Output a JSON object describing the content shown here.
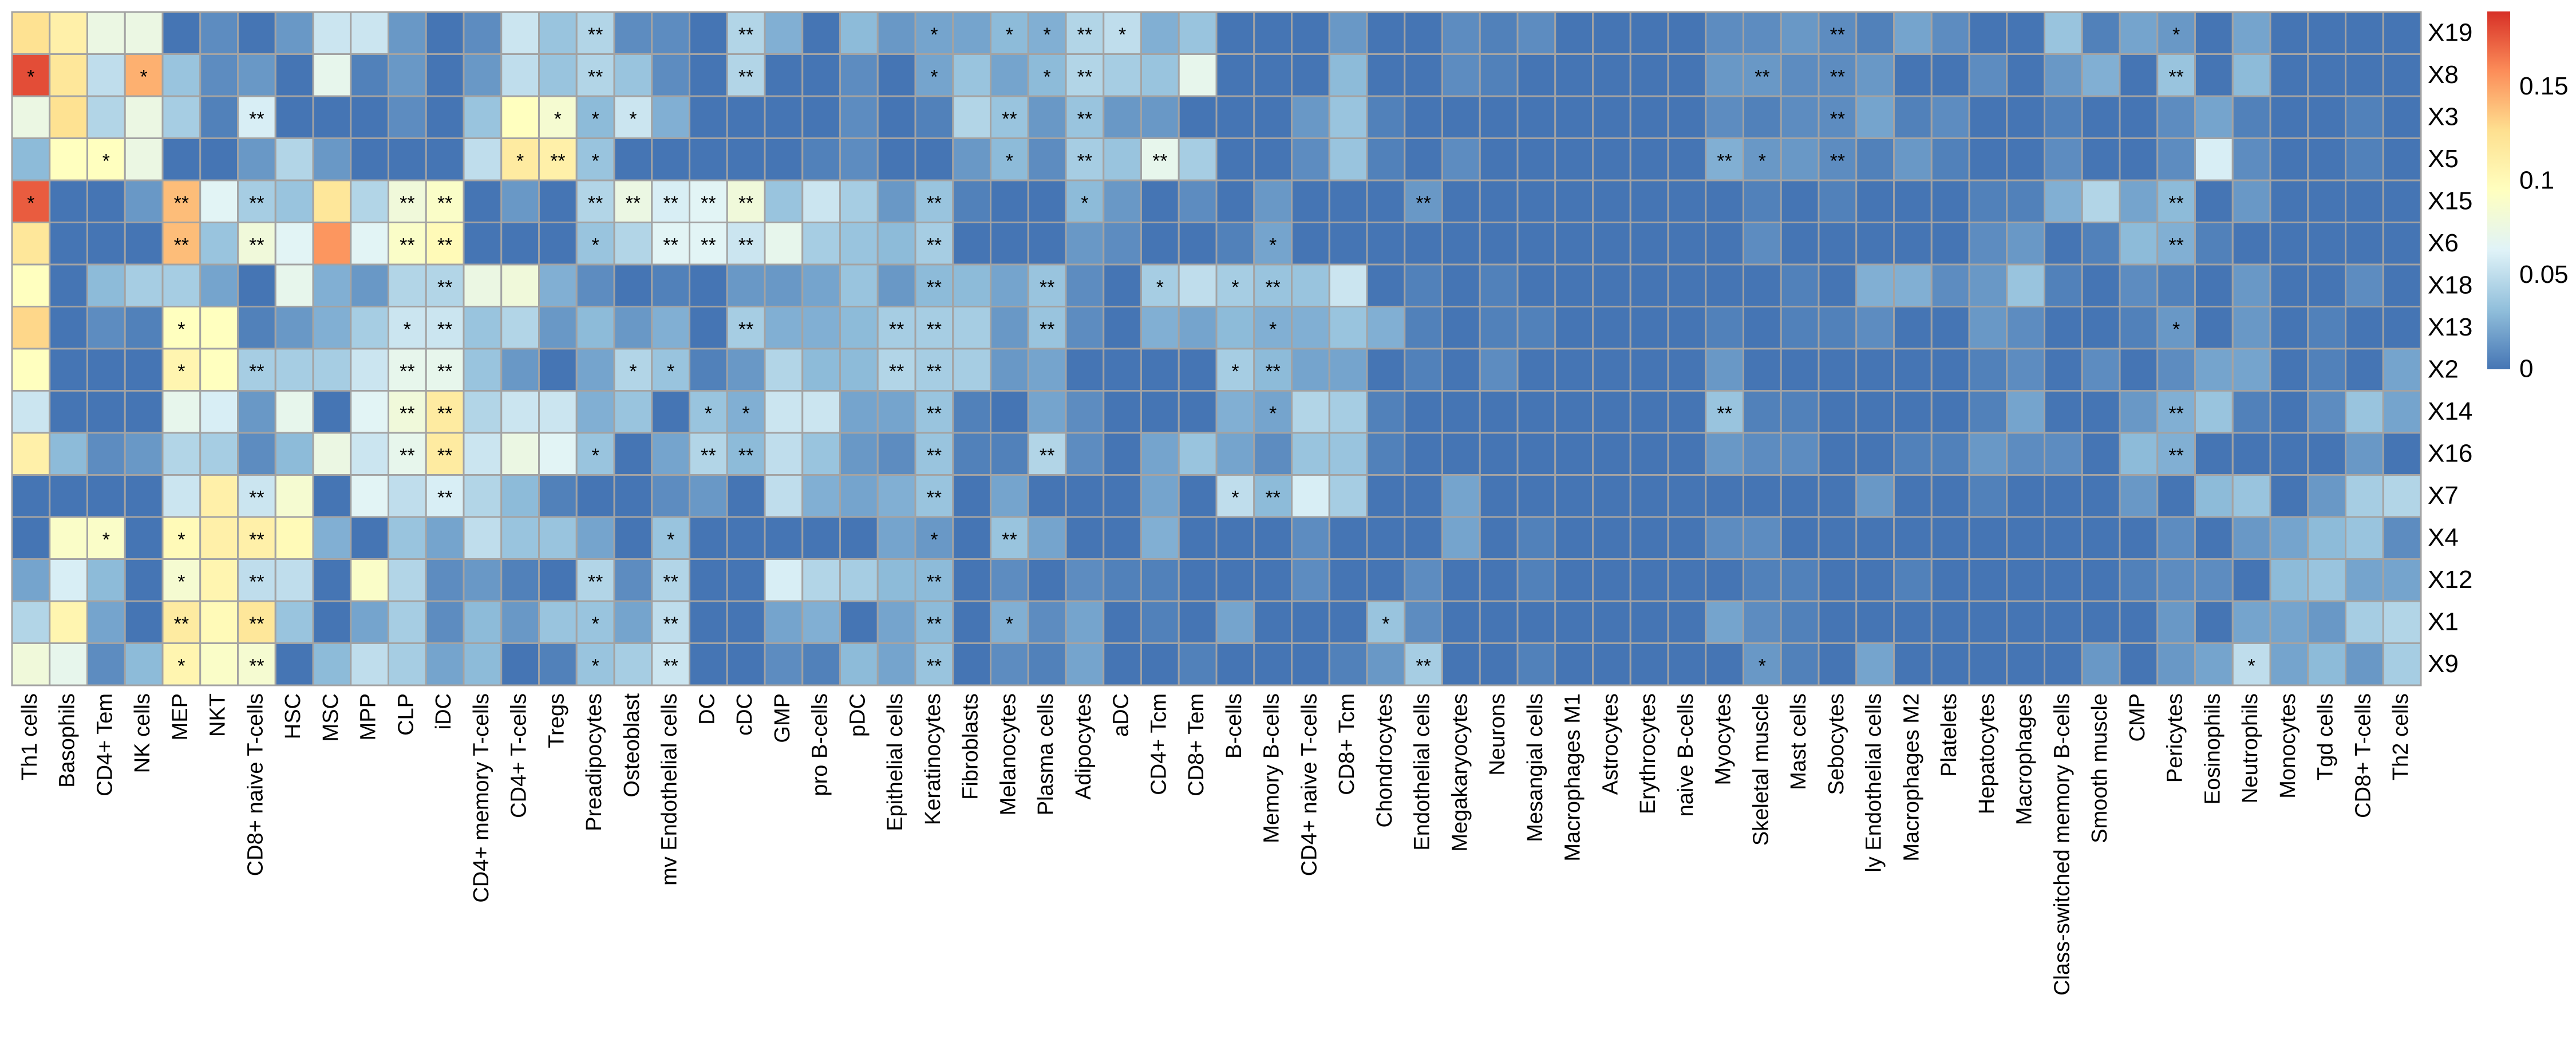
{
  "chart_data": {
    "type": "heatmap",
    "title": "",
    "rows": [
      "X19",
      "X8",
      "X3",
      "X5",
      "X15",
      "X6",
      "X18",
      "X13",
      "X2",
      "X14",
      "X16",
      "X7",
      "X4",
      "X12",
      "X1",
      "X9"
    ],
    "columns": [
      "Th1 cells",
      "Basophils",
      "CD4+ Tem",
      "NK cells",
      "MEP",
      "NKT",
      "CD8+ naive T-cells",
      "HSC",
      "MSC",
      "MPP",
      "CLP",
      "iDC",
      "CD4+ memory T-cells",
      "CD4+ T-cells",
      "Tregs",
      "Preadipocytes",
      "Osteoblast",
      "mv Endothelial cells",
      "DC",
      "cDC",
      "GMP",
      "pro B-cells",
      "pDC",
      "Epithelial cells",
      "Keratinocytes",
      "Fibroblasts",
      "Melanocytes",
      "Plasma cells",
      "Adipocytes",
      "aDC",
      "CD4+ Tcm",
      "CD8+ Tem",
      "B-cells",
      "Memory B-cells",
      "CD4+ naive T-cells",
      "CD8+ Tcm",
      "Chondrocytes",
      "Endothelial cells",
      "Megakaryocytes",
      "Neurons",
      "Mesangial cells",
      "Macrophages M1",
      "Astrocytes",
      "Erythrocytes",
      "naive B-cells",
      "Myocytes",
      "Skeletal muscle",
      "Mast cells",
      "Sebocytes",
      "ly Endothelial cells",
      "Macrophages M2",
      "Platelets",
      "Hepatocytes",
      "Macrophages",
      "Class-switched memory B-cells",
      "Smooth muscle",
      "CMP",
      "Pericytes",
      "Eosinophils",
      "Neutrophils",
      "Monocytes",
      "Tgd cells",
      "CD8+ T-cells",
      "Th2 cells"
    ],
    "values": [
      [
        0.125,
        0.11,
        0.075,
        0.075,
        0,
        0.01,
        0,
        0.015,
        0.055,
        0.055,
        0.015,
        0,
        0.01,
        0.055,
        0.035,
        0.045,
        0.01,
        0.01,
        0,
        0.045,
        0.025,
        0,
        0.03,
        0.015,
        0.02,
        0.02,
        0.03,
        0.025,
        0.045,
        0.05,
        0.025,
        0.035,
        0,
        0,
        0,
        0.015,
        0,
        0,
        0.01,
        0.005,
        0.01,
        0,
        0,
        0,
        0,
        0.01,
        0.01,
        0.015,
        0.01,
        0.005,
        0.02,
        0.01,
        0,
        0,
        0.035,
        0.005,
        0.02,
        0.015,
        0,
        0.02,
        0,
        0,
        0,
        0
      ],
      [
        0.18,
        0.12,
        0.05,
        0.145,
        0.035,
        0.01,
        0.015,
        0,
        0.07,
        0.005,
        0.015,
        0,
        0.015,
        0.05,
        0.035,
        0.045,
        0.035,
        0.01,
        0,
        0.045,
        0,
        0,
        0.01,
        0,
        0.02,
        0.035,
        0.02,
        0.03,
        0.045,
        0.04,
        0.035,
        0.07,
        0,
        0,
        0,
        0.03,
        0,
        0,
        0.01,
        0.005,
        0,
        0,
        0,
        0,
        0,
        0.015,
        0.015,
        0.01,
        0.01,
        0.015,
        0,
        0,
        0.01,
        0,
        0.015,
        0.025,
        0,
        0.035,
        0,
        0.03,
        0,
        0,
        0,
        0
      ],
      [
        0.075,
        0.125,
        0.045,
        0.075,
        0.04,
        0.005,
        0.06,
        0,
        0,
        0,
        0.01,
        0,
        0.035,
        0.095,
        0.085,
        0.03,
        0.055,
        0.025,
        0,
        0,
        0,
        0,
        0.01,
        0,
        0.005,
        0.045,
        0.035,
        0.015,
        0.035,
        0.015,
        0.015,
        0,
        0,
        0,
        0.015,
        0.035,
        0.005,
        0,
        0,
        0,
        0,
        0,
        0,
        0,
        0,
        0.01,
        0.005,
        0.01,
        0.01,
        0.02,
        0.005,
        0.01,
        0,
        0,
        0.005,
        0,
        0,
        0.01,
        0.02,
        0.005,
        0,
        0,
        0.005,
        0
      ],
      [
        0.03,
        0.095,
        0.095,
        0.075,
        0,
        0,
        0.015,
        0.045,
        0.015,
        0,
        0,
        0,
        0.05,
        0.115,
        0.11,
        0.035,
        0,
        0,
        0,
        0,
        0,
        0.005,
        0.01,
        0,
        0,
        0.015,
        0.03,
        0.01,
        0.04,
        0.035,
        0.07,
        0.04,
        0,
        0,
        0.01,
        0.035,
        0.005,
        0,
        0.01,
        0,
        0,
        0,
        0,
        0,
        0,
        0.025,
        0.015,
        0.015,
        0.01,
        0.005,
        0.015,
        0.005,
        0,
        0,
        0.01,
        0,
        0,
        0.01,
        0.06,
        0.01,
        0,
        0,
        0.005,
        0
      ],
      [
        0.175,
        0,
        0,
        0.015,
        0.14,
        0.065,
        0.04,
        0.035,
        0.12,
        0.045,
        0.08,
        0.09,
        0,
        0.015,
        0,
        0.045,
        0.075,
        0.06,
        0.065,
        0.08,
        0.035,
        0.055,
        0.04,
        0.015,
        0.035,
        0.005,
        0,
        0,
        0.03,
        0.015,
        0,
        0.01,
        0,
        0.015,
        0,
        0,
        0,
        0.015,
        0,
        0,
        0,
        0,
        0,
        0,
        0,
        0,
        0.005,
        0,
        0.005,
        0,
        0,
        0,
        0.005,
        0.005,
        0.025,
        0.045,
        0.02,
        0.03,
        0,
        0.015,
        0,
        0,
        0,
        0
      ],
      [
        0.12,
        0,
        0,
        0,
        0.14,
        0.035,
        0.08,
        0.065,
        0.155,
        0.065,
        0.09,
        0.1,
        0,
        0,
        0,
        0.035,
        0.045,
        0.065,
        0.065,
        0.055,
        0.07,
        0.04,
        0.035,
        0.03,
        0.04,
        0,
        0,
        0,
        0.015,
        0.01,
        0,
        0,
        0.005,
        0.02,
        0,
        0,
        0,
        0,
        0,
        0,
        0,
        0,
        0,
        0,
        0,
        0,
        0.01,
        0,
        0,
        0,
        0,
        0,
        0.01,
        0.015,
        0,
        0.005,
        0.03,
        0.025,
        0.005,
        0,
        0,
        0,
        0,
        0
      ],
      [
        0.095,
        0,
        0.03,
        0.04,
        0.04,
        0.02,
        0,
        0.07,
        0.025,
        0.015,
        0.045,
        0.045,
        0.075,
        0.08,
        0.025,
        0.01,
        0,
        0.005,
        0,
        0.015,
        0.015,
        0.02,
        0.035,
        0.015,
        0.03,
        0.03,
        0.02,
        0.035,
        0.01,
        0,
        0.04,
        0.05,
        0.04,
        0.035,
        0.035,
        0.055,
        0,
        0.005,
        0,
        0.005,
        0,
        0,
        0,
        0,
        0,
        0,
        0,
        0.005,
        0,
        0.025,
        0.025,
        0.01,
        0.015,
        0.035,
        0.005,
        0,
        0.01,
        0.005,
        0,
        0.015,
        0,
        0,
        0.01,
        0
      ],
      [
        0.13,
        0,
        0.01,
        0.005,
        0.095,
        0.095,
        0.005,
        0.015,
        0.025,
        0.04,
        0.055,
        0.055,
        0.035,
        0.045,
        0.015,
        0.03,
        0.015,
        0.025,
        0,
        0.04,
        0.025,
        0.025,
        0.03,
        0.04,
        0.04,
        0.04,
        0.015,
        0.035,
        0.01,
        0,
        0.025,
        0.02,
        0.03,
        0.025,
        0.025,
        0.035,
        0.025,
        0.005,
        0,
        0.005,
        0.005,
        0,
        0,
        0,
        0,
        0.005,
        0,
        0.005,
        0.005,
        0.01,
        0,
        0,
        0.015,
        0.01,
        0,
        0,
        0.005,
        0.015,
        0,
        0.015,
        0,
        0.005,
        0,
        0
      ],
      [
        0.095,
        0,
        0,
        0,
        0.105,
        0.095,
        0.04,
        0.04,
        0.04,
        0.055,
        0.07,
        0.07,
        0.035,
        0.015,
        0,
        0.02,
        0.045,
        0.035,
        0.005,
        0.015,
        0.045,
        0.03,
        0.03,
        0.045,
        0.04,
        0.04,
        0.015,
        0.02,
        0,
        0,
        0,
        0,
        0.04,
        0.03,
        0.02,
        0.02,
        0,
        0.005,
        0,
        0.01,
        0,
        0,
        0,
        0,
        0,
        0.015,
        0,
        0,
        0,
        0,
        0,
        0,
        0.005,
        0.01,
        0,
        0.01,
        0,
        0.01,
        0.02,
        0.02,
        0,
        0.005,
        0,
        0.02
      ],
      [
        0.055,
        0,
        0,
        0,
        0.07,
        0.06,
        0.015,
        0.07,
        0,
        0.065,
        0.08,
        0.115,
        0.045,
        0.055,
        0.055,
        0.025,
        0.035,
        0,
        0.035,
        0.025,
        0.055,
        0.055,
        0.02,
        0.02,
        0.035,
        0.005,
        0,
        0.02,
        0.01,
        0,
        0,
        0,
        0.025,
        0.02,
        0.045,
        0.04,
        0.005,
        0,
        0,
        0,
        0,
        0,
        0,
        0,
        0,
        0.035,
        0.005,
        0.005,
        0,
        0,
        0,
        0,
        0.005,
        0.02,
        0,
        0,
        0.015,
        0.025,
        0.035,
        0.005,
        0,
        0.01,
        0.035,
        0.02
      ],
      [
        0.11,
        0.03,
        0.01,
        0.015,
        0.045,
        0.04,
        0.01,
        0.03,
        0.075,
        0.055,
        0.07,
        0.115,
        0.055,
        0.075,
        0.065,
        0.035,
        0,
        0.02,
        0.045,
        0.03,
        0.05,
        0.035,
        0.015,
        0.01,
        0.035,
        0.005,
        0.005,
        0.045,
        0.01,
        0,
        0.02,
        0.035,
        0.02,
        0.01,
        0.035,
        0.035,
        0.005,
        0,
        0,
        0,
        0,
        0,
        0,
        0,
        0,
        0.015,
        0.01,
        0.01,
        0,
        0,
        0.005,
        0.005,
        0.015,
        0.01,
        0.01,
        0,
        0.03,
        0.025,
        0,
        0,
        0,
        0,
        0.015,
        0
      ],
      [
        0,
        0,
        0,
        0,
        0.055,
        0.11,
        0.055,
        0.085,
        0,
        0.065,
        0.05,
        0.06,
        0.045,
        0.03,
        0.005,
        0,
        0,
        0.01,
        0.015,
        0,
        0.05,
        0.025,
        0.02,
        0.025,
        0.035,
        0,
        0.02,
        0,
        0,
        0,
        0.02,
        0,
        0.05,
        0.03,
        0.06,
        0.04,
        0,
        0,
        0.02,
        0,
        0,
        0,
        0,
        0,
        0,
        0,
        0,
        0,
        0,
        0.015,
        0,
        0,
        0.005,
        0,
        0,
        0,
        0.015,
        0,
        0.03,
        0.035,
        0,
        0.015,
        0.04,
        0.045
      ],
      [
        0,
        0.09,
        0.09,
        0,
        0.1,
        0.11,
        0.11,
        0.1,
        0.025,
        0,
        0.035,
        0.02,
        0.05,
        0.035,
        0.035,
        0.02,
        0,
        0.035,
        0,
        0,
        0,
        0,
        0,
        0.02,
        0.015,
        0,
        0.035,
        0.02,
        0,
        0,
        0.025,
        0,
        0,
        0,
        0.01,
        0,
        0,
        0,
        0.02,
        0,
        0.005,
        0,
        0,
        0,
        0,
        0.01,
        0.01,
        0,
        0,
        0,
        0,
        0,
        0,
        0,
        0,
        0,
        0,
        0.01,
        0,
        0.015,
        0.02,
        0.03,
        0.035,
        0.01
      ],
      [
        0.02,
        0.06,
        0.03,
        0,
        0.085,
        0.105,
        0.05,
        0.05,
        0,
        0.09,
        0.045,
        0.01,
        0.015,
        0.005,
        0,
        0.045,
        0.01,
        0.045,
        0,
        0,
        0.06,
        0.045,
        0.04,
        0.03,
        0.03,
        0,
        0.01,
        0,
        0.01,
        0.005,
        0.005,
        0,
        0,
        0,
        0.01,
        0,
        0,
        0.01,
        0,
        0,
        0.005,
        0,
        0,
        0,
        0,
        0,
        0.005,
        0.005,
        0,
        0,
        0.005,
        0,
        0,
        0,
        0,
        0,
        0.005,
        0.01,
        0.01,
        0,
        0.03,
        0.035,
        0.02,
        0.02
      ],
      [
        0.045,
        0.105,
        0.02,
        0,
        0.115,
        0.1,
        0.12,
        0.035,
        0,
        0.02,
        0.04,
        0.01,
        0.03,
        0.015,
        0.035,
        0.035,
        0.02,
        0.05,
        0,
        0,
        0.02,
        0.025,
        0,
        0.02,
        0.03,
        0,
        0.025,
        0.01,
        0.02,
        0,
        0.005,
        0,
        0.02,
        0,
        0,
        0,
        0.035,
        0.01,
        0,
        0,
        0,
        0,
        0,
        0,
        0,
        0.02,
        0.01,
        0.005,
        0,
        0,
        0,
        0,
        0,
        0,
        0,
        0,
        0,
        0.015,
        0,
        0.02,
        0.02,
        0.015,
        0.04,
        0.045
      ],
      [
        0.08,
        0.07,
        0.01,
        0.03,
        0.105,
        0.09,
        0.085,
        0,
        0.03,
        0.05,
        0.04,
        0.02,
        0.03,
        0,
        0.005,
        0.035,
        0.04,
        0.055,
        0,
        0,
        0.01,
        0.005,
        0.03,
        0.02,
        0.035,
        0,
        0.01,
        0.005,
        0.02,
        0,
        0,
        0.005,
        0,
        0,
        0,
        0.005,
        0.015,
        0.04,
        0,
        0,
        0.005,
        0,
        0,
        0,
        0,
        0,
        0.015,
        0.005,
        0,
        0.02,
        0,
        0,
        0,
        0,
        0,
        0.015,
        0,
        0.015,
        0.02,
        0.05,
        0.02,
        0.03,
        0.015,
        0.04
      ]
    ],
    "significance": {
      "X19": {
        "15": "**",
        "19": "**",
        "24": "*",
        "26": "*",
        "27": "*",
        "28": "**",
        "29": "*",
        "48": "**",
        "57": "*"
      },
      "X8": {
        "0": "*",
        "3": "*",
        "15": "**",
        "19": "**",
        "24": "*",
        "27": "*",
        "28": "**",
        "46": "**",
        "48": "**",
        "57": "**"
      },
      "X3": {
        "6": "**",
        "14": "*",
        "15": "*",
        "16": "*",
        "26": "**",
        "28": "**",
        "48": "**"
      },
      "X5": {
        "2": "*",
        "13": "*",
        "14": "**",
        "15": "*",
        "26": "*",
        "28": "**",
        "30": "**",
        "45": "**",
        "46": "*",
        "48": "**"
      },
      "X15": {
        "0": "*",
        "4": "**",
        "6": "**",
        "10": "**",
        "11": "**",
        "15": "**",
        "16": "**",
        "17": "**",
        "18": "**",
        "19": "**",
        "24": "**",
        "28": "*",
        "37": "**",
        "57": "**"
      },
      "X6": {
        "4": "**",
        "6": "**",
        "10": "**",
        "11": "**",
        "15": "*",
        "17": "**",
        "18": "**",
        "19": "**",
        "24": "**",
        "33": "*",
        "57": "**"
      },
      "X18": {
        "11": "**",
        "24": "**",
        "27": "**",
        "30": "*",
        "32": "*",
        "33": "**"
      },
      "X13": {
        "4": "*",
        "10": "*",
        "11": "**",
        "19": "**",
        "23": "**",
        "24": "**",
        "27": "**",
        "33": "*",
        "57": "*"
      },
      "X2": {
        "4": "*",
        "6": "**",
        "10": "**",
        "11": "**",
        "16": "*",
        "17": "*",
        "23": "**",
        "24": "**",
        "32": "*",
        "33": "**"
      },
      "X14": {
        "10": "**",
        "11": "**",
        "18": "*",
        "19": "*",
        "24": "**",
        "33": "*",
        "45": "**",
        "57": "**"
      },
      "X16": {
        "10": "**",
        "11": "**",
        "15": "*",
        "18": "**",
        "19": "**",
        "24": "**",
        "27": "**",
        "57": "**"
      },
      "X7": {
        "6": "**",
        "11": "**",
        "24": "**",
        "32": "*",
        "33": "**"
      },
      "X4": {
        "2": "*",
        "4": "*",
        "6": "**",
        "17": "*",
        "24": "*",
        "26": "**"
      },
      "X12": {
        "4": "*",
        "6": "**",
        "15": "**",
        "17": "**",
        "24": "**"
      },
      "X1": {
        "4": "**",
        "6": "**",
        "15": "*",
        "17": "**",
        "24": "**",
        "26": "*",
        "36": "*"
      },
      "X9": {
        "4": "*",
        "6": "**",
        "15": "*",
        "17": "**",
        "24": "**",
        "37": "**",
        "46": "*",
        "59": "*"
      }
    },
    "color_scale": {
      "range": [
        0,
        0.19
      ],
      "stops": [
        "#4575b4",
        "#91bfdb",
        "#e0f3f8",
        "#ffffbf",
        "#fee090",
        "#fc8d59",
        "#d73027"
      ],
      "ticks": [
        0,
        0.05,
        0.1,
        0.15
      ],
      "tick_labels": [
        "0",
        "0.05",
        "0.1",
        "0.15"
      ]
    },
    "border_color": "#a3a3a3",
    "legend_position": "right",
    "xlabel": "",
    "ylabel": ""
  }
}
